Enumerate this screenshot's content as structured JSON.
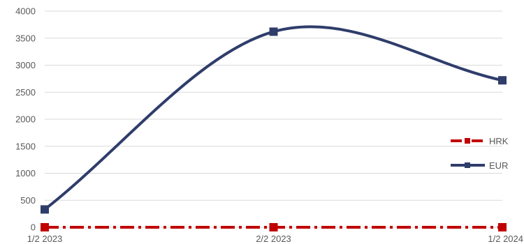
{
  "chart_data": {
    "type": "line",
    "categories": [
      "1/2 2023",
      "2/2 2023",
      "1/2 2024"
    ],
    "series": [
      {
        "name": "HRK",
        "values": [
          0,
          0,
          0
        ],
        "color": "#c00000",
        "marker": "square",
        "dash": "dash-dot"
      },
      {
        "name": "EUR",
        "values": [
          330,
          3620,
          2720
        ],
        "color": "#2f3d6b",
        "marker": "square",
        "smooth": true
      }
    ],
    "ylim": [
      0,
      4000
    ],
    "yticks": [
      0,
      500,
      1000,
      1500,
      2000,
      2500,
      3000,
      3500,
      4000
    ],
    "grid": true,
    "legend": "right"
  }
}
